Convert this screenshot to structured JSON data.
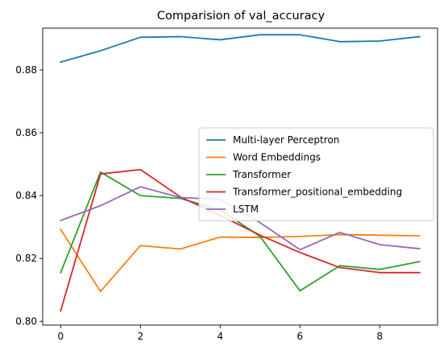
{
  "chart_data": {
    "type": "line",
    "title": "Comparision of val_accuracy",
    "xlabel": "",
    "ylabel": "",
    "x": [
      0,
      1,
      2,
      3,
      4,
      5,
      6,
      7,
      8,
      9
    ],
    "xlim": [
      -0.45,
      9.45
    ],
    "ylim": [
      0.7988,
      0.8933
    ],
    "xticks": [
      0,
      2,
      4,
      6,
      8
    ],
    "yticks": [
      0.8,
      0.82,
      0.84,
      0.86,
      0.88
    ],
    "ytick_labels": [
      "0.80",
      "0.82",
      "0.84",
      "0.86",
      "0.88"
    ],
    "xtick_labels": [
      "0",
      "2",
      "4",
      "6",
      "8"
    ],
    "grid": false,
    "legend_position": "center-right",
    "series": [
      {
        "name": "Multi-layer Perceptron",
        "color": "#1f77b4",
        "values": [
          0.8825,
          0.8861,
          0.8904,
          0.8906,
          0.8896,
          0.8912,
          0.8912,
          0.889,
          0.8892,
          0.8906
        ]
      },
      {
        "name": "Word Embeddings",
        "color": "#ff7f0e",
        "values": [
          0.8292,
          0.8095,
          0.8241,
          0.823,
          0.8268,
          0.8267,
          0.827,
          0.8276,
          0.8274,
          0.8272
        ]
      },
      {
        "name": "Transformer",
        "color": "#2ca02c",
        "values": [
          0.8155,
          0.8475,
          0.84,
          0.8391,
          0.8355,
          0.827,
          0.8097,
          0.8177,
          0.8165,
          0.819
        ]
      },
      {
        "name": "Transformer_positional_embedding",
        "color": "#d62728",
        "values": [
          0.8033,
          0.8469,
          0.8483,
          0.8396,
          0.8337,
          0.8274,
          0.8219,
          0.8171,
          0.8155,
          0.8155
        ]
      },
      {
        "name": "LSTM",
        "color": "#9467bd",
        "values": [
          0.8321,
          0.8368,
          0.8428,
          0.8394,
          0.8388,
          0.8314,
          0.8228,
          0.8283,
          0.8244,
          0.8231
        ]
      }
    ]
  }
}
